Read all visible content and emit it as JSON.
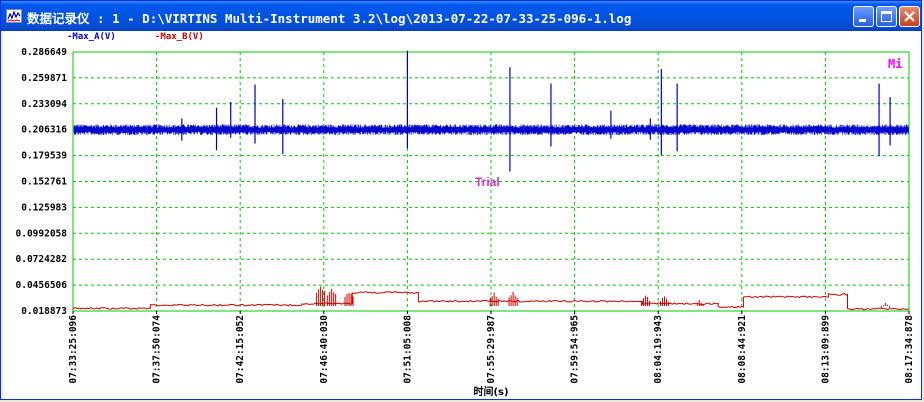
{
  "window": {
    "title": "数据记录仪 : 1 - D:\\VIRTINS Multi-Instrument 3.2\\log\\2013-07-22-07-33-25-096-1.log"
  },
  "chart_data": {
    "type": "line",
    "xlabel": "时间(s)",
    "ylabel": "",
    "x_ticks": [
      "07:33:25:096",
      "07:37:50:074",
      "07:42:15:052",
      "07:46:40:030",
      "07:51:05:008",
      "07:55:29:987",
      "07:59:54:965",
      "08:04:19:943",
      "08:08:44:921",
      "08:13:09:899",
      "08:17:34:878"
    ],
    "y_ticks": [
      "0.286649",
      "0.259871",
      "0.233094",
      "0.206316",
      "0.179539",
      "0.152761",
      "0.125983",
      "0.0992058",
      "0.0724282",
      "0.0456506",
      "0.018873"
    ],
    "ylim": [
      0.018873,
      0.286649
    ],
    "xlim": [
      "07:33:25:096",
      "08:17:34:878"
    ],
    "grid": true,
    "annotation": "Trial",
    "corner_label": "Mi",
    "series": [
      {
        "name": "Max_A(V)",
        "color": "#0000CC",
        "baseline": 0.2063,
        "noise_band": 0.004,
        "spikes": [
          {
            "x": "07:39:10",
            "y_max": 0.218,
            "y_min": 0.195
          },
          {
            "x": "07:41:00",
            "y_max": 0.229,
            "y_min": 0.185
          },
          {
            "x": "07:41:45",
            "y_max": 0.235,
            "y_min": 0.198
          },
          {
            "x": "07:43:02",
            "y_max": 0.253,
            "y_min": 0.192
          },
          {
            "x": "07:44:30",
            "y_max": 0.238,
            "y_min": 0.181
          },
          {
            "x": "07:51:05",
            "y_max": 0.288,
            "y_min": 0.187
          },
          {
            "x": "07:56:30",
            "y_max": 0.271,
            "y_min": 0.163
          },
          {
            "x": "07:58:40",
            "y_max": 0.254,
            "y_min": 0.189
          },
          {
            "x": "08:01:50",
            "y_max": 0.226,
            "y_min": 0.197
          },
          {
            "x": "08:03:55",
            "y_max": 0.218,
            "y_min": 0.196
          },
          {
            "x": "08:04:30",
            "y_max": 0.269,
            "y_min": 0.18
          },
          {
            "x": "08:05:20",
            "y_max": 0.254,
            "y_min": 0.184
          },
          {
            "x": "08:16:00",
            "y_max": 0.254,
            "y_min": 0.179
          },
          {
            "x": "08:16:35",
            "y_max": 0.24,
            "y_min": 0.19
          }
        ]
      },
      {
        "name": "Max_B(V)",
        "color": "#CC0000",
        "segments": [
          {
            "from": "07:33:25",
            "to": "07:37:30",
            "y": 0.0215
          },
          {
            "from": "07:37:30",
            "to": "07:45:30",
            "y": 0.025
          },
          {
            "from": "07:45:30",
            "to": "07:48:10",
            "y": 0.0265
          },
          {
            "from": "07:48:10",
            "to": "07:51:40",
            "y": 0.038
          },
          {
            "from": "07:51:40",
            "to": "07:57:00",
            "y": 0.029
          },
          {
            "from": "07:57:00",
            "to": "08:03:30",
            "y": 0.029
          },
          {
            "from": "08:03:30",
            "to": "08:07:30",
            "y": 0.0265
          },
          {
            "from": "08:07:30",
            "to": "08:08:50",
            "y": 0.023
          },
          {
            "from": "08:08:50",
            "to": "08:13:20",
            "y": 0.0335
          },
          {
            "from": "08:13:20",
            "to": "08:14:20",
            "y": 0.036
          },
          {
            "from": "08:14:20",
            "to": "08:17:34",
            "y": 0.021
          }
        ],
        "bursts": [
          {
            "x": "07:46:30",
            "y_max": 0.0445
          },
          {
            "x": "07:47:05",
            "y_max": 0.042
          },
          {
            "x": "07:48:00",
            "y_max": 0.0395
          },
          {
            "x": "07:55:40",
            "y_max": 0.038
          },
          {
            "x": "07:56:40",
            "y_max": 0.039
          },
          {
            "x": "08:03:40",
            "y_max": 0.036
          },
          {
            "x": "08:04:40",
            "y_max": 0.035
          },
          {
            "x": "08:06:30",
            "y_max": 0.031
          },
          {
            "x": "08:16:20",
            "y_max": 0.028
          }
        ]
      }
    ]
  }
}
